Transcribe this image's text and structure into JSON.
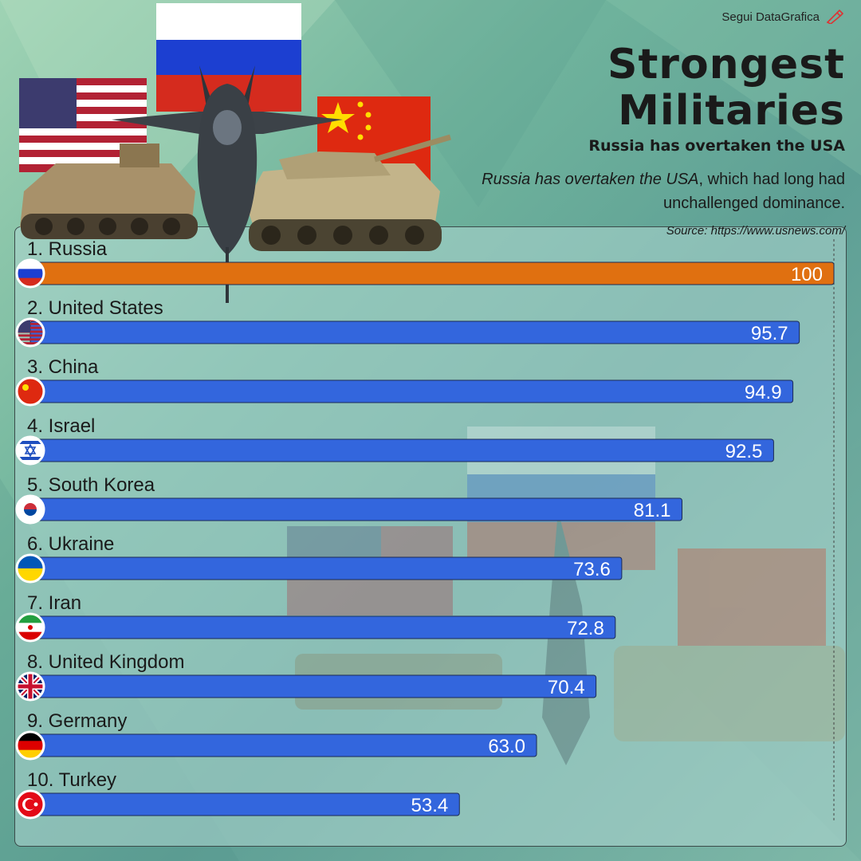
{
  "brand": {
    "name": "Segui DataGrafica",
    "logo_icon": "pencil-ruler-icon"
  },
  "header": {
    "title_line1": "Strongest",
    "title_line2": "Militaries",
    "subtitle": "Russia has overtaken the USA",
    "description_emphasis": "Russia has overtaken the USA",
    "description_rest": ", which had long had unchallenged dominance.",
    "source": "Source: https://www.usnews.com/"
  },
  "colors": {
    "highlight": "#e07010",
    "bar": "#3366dd",
    "bar_border": "#1b2a55"
  },
  "chart_data": {
    "type": "bar",
    "orientation": "horizontal",
    "xlim": [
      0,
      100
    ],
    "categories": [
      "1. Russia",
      "2. United States",
      "3. China",
      "4. Israel",
      "5. South Korea",
      "6. Ukraine",
      "7. Iran",
      "8. United Kingdom",
      "9. Germany",
      "10. Turkey"
    ],
    "value_labels": [
      "100",
      "95.7",
      "94.9",
      "92.5",
      "81.1",
      "73.6",
      "72.8",
      "70.4",
      "63.0",
      "53.4"
    ],
    "values": [
      100,
      95.7,
      94.9,
      92.5,
      81.1,
      73.6,
      72.8,
      70.4,
      63.0,
      53.4
    ],
    "flags": [
      "russia-flag-icon",
      "usa-flag-icon",
      "china-flag-icon",
      "israel-flag-icon",
      "south-korea-flag-icon",
      "ukraine-flag-icon",
      "iran-flag-icon",
      "uk-flag-icon",
      "germany-flag-icon",
      "turkey-flag-icon"
    ],
    "highlighted_index": 0
  }
}
